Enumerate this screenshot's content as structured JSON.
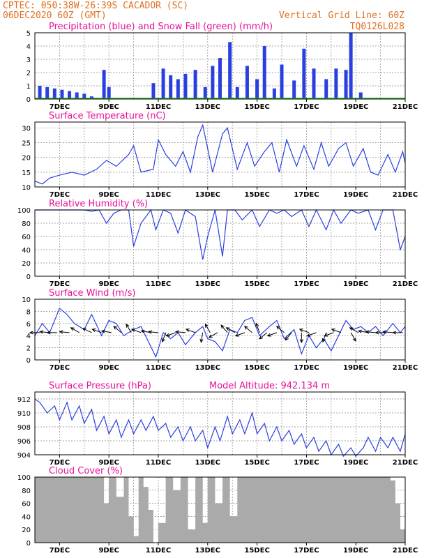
{
  "header": {
    "line1": "CPTEC:   050:38W-26:39S   CACADOR (SC)",
    "line2": "06DEC2020 60Z (GMT)",
    "grid_note": "Vertical Grid Line: 60Z",
    "code": "TQ0126L028"
  },
  "x_axis": {
    "tick_labels": [
      "7DEC",
      "9DEC",
      "11DEC",
      "13DEC",
      "15DEC",
      "17DEC",
      "19DEC",
      "21DEC"
    ],
    "start_day": 6.0,
    "end_day": 21.0
  },
  "chart_data": [
    {
      "id": "precip",
      "type": "bar",
      "title": "Precipitation (blue) and Snow Fall (green) (mm/h)",
      "ylim": [
        0,
        5
      ],
      "yticks": [
        0,
        1,
        2,
        3,
        4,
        5
      ],
      "series": [
        {
          "name": "Precipitation",
          "color": "#2a3fe0",
          "x": [
            6.2,
            6.5,
            6.8,
            7.1,
            7.4,
            7.7,
            8.0,
            8.3,
            8.8,
            9.0,
            10.8,
            11.2,
            11.5,
            11.8,
            12.1,
            12.5,
            12.9,
            13.2,
            13.5,
            13.9,
            14.2,
            14.6,
            15.0,
            15.3,
            15.7,
            16.0,
            16.5,
            16.9,
            17.3,
            17.8,
            18.2,
            18.6,
            18.8,
            19.2
          ],
          "values": [
            1.0,
            0.9,
            0.8,
            0.7,
            0.6,
            0.5,
            0.4,
            0.2,
            2.2,
            0.9,
            1.2,
            2.3,
            1.8,
            1.5,
            1.9,
            2.2,
            0.9,
            2.5,
            3.1,
            4.3,
            0.9,
            2.5,
            1.5,
            4.0,
            0.8,
            2.6,
            1.4,
            3.8,
            2.3,
            1.5,
            2.3,
            2.2,
            5.0,
            0.5
          ]
        },
        {
          "name": "Snow Fall",
          "color": "#20b020",
          "x": [],
          "values": []
        }
      ]
    },
    {
      "id": "temp",
      "type": "line",
      "title": "Surface Temperature (nC)",
      "ylim": [
        10,
        32
      ],
      "yticks": [
        10,
        15,
        20,
        25,
        30
      ],
      "x": [
        6.0,
        6.3,
        6.6,
        7.0,
        7.5,
        8.0,
        8.5,
        8.9,
        9.3,
        9.8,
        10.0,
        10.3,
        10.8,
        11.0,
        11.3,
        11.7,
        12.0,
        12.3,
        12.6,
        12.8,
        13.2,
        13.6,
        13.8,
        14.2,
        14.6,
        14.9,
        15.3,
        15.6,
        15.9,
        16.2,
        16.6,
        16.9,
        17.3,
        17.6,
        17.9,
        18.3,
        18.6,
        18.9,
        19.3,
        19.6,
        19.9,
        20.3,
        20.6,
        20.9,
        21.0
      ],
      "values": [
        12,
        11,
        13,
        14,
        15,
        14,
        16,
        19,
        17,
        21,
        24,
        15,
        16,
        26,
        21,
        17,
        22,
        15,
        27,
        31,
        15,
        28,
        30,
        16,
        25,
        17,
        22,
        25,
        15,
        26,
        17,
        24,
        16,
        25,
        17,
        23,
        25,
        17,
        23,
        15,
        14,
        21,
        15,
        22,
        18
      ]
    },
    {
      "id": "rh",
      "type": "line",
      "title": "Relative Humidity (%)",
      "ylim": [
        0,
        100
      ],
      "yticks": [
        0,
        20,
        40,
        60,
        80,
        100
      ],
      "x": [
        6.0,
        6.5,
        7.0,
        7.5,
        8.0,
        8.3,
        8.6,
        8.9,
        9.2,
        9.5,
        9.8,
        10.0,
        10.3,
        10.7,
        10.9,
        11.2,
        11.5,
        11.8,
        12.1,
        12.5,
        12.8,
        13.0,
        13.3,
        13.6,
        13.8,
        14.1,
        14.4,
        14.8,
        15.1,
        15.5,
        15.8,
        16.1,
        16.4,
        16.8,
        17.1,
        17.4,
        17.8,
        18.1,
        18.4,
        18.8,
        19.1,
        19.5,
        19.8,
        20.1,
        20.5,
        20.8,
        21.0
      ],
      "values": [
        100,
        100,
        100,
        100,
        100,
        98,
        100,
        80,
        95,
        100,
        100,
        45,
        80,
        100,
        70,
        100,
        95,
        65,
        100,
        90,
        25,
        60,
        100,
        30,
        100,
        100,
        85,
        100,
        75,
        100,
        95,
        100,
        90,
        100,
        75,
        100,
        70,
        100,
        80,
        100,
        95,
        100,
        70,
        100,
        100,
        40,
        60
      ]
    },
    {
      "id": "wind",
      "type": "line",
      "title": "Surface Wind (m/s)",
      "ylim": [
        0,
        10
      ],
      "yticks": [
        0,
        2,
        4,
        6,
        8,
        10
      ],
      "x": [
        6.0,
        6.3,
        6.6,
        7.0,
        7.3,
        7.6,
        8.0,
        8.3,
        8.7,
        9.0,
        9.3,
        9.6,
        10.0,
        10.3,
        10.6,
        10.9,
        11.2,
        11.5,
        11.8,
        12.1,
        12.5,
        12.8,
        13.0,
        13.3,
        13.6,
        13.9,
        14.2,
        14.5,
        14.8,
        15.1,
        15.5,
        15.8,
        16.1,
        16.5,
        16.8,
        17.1,
        17.4,
        17.7,
        18.0,
        18.3,
        18.6,
        18.9,
        19.2,
        19.5,
        19.8,
        20.1,
        20.5,
        20.8,
        21.0
      ],
      "values": [
        4,
        6,
        4.5,
        8.5,
        7.5,
        6,
        5,
        7.5,
        4,
        6.5,
        6,
        4,
        5,
        5.5,
        3,
        0.5,
        4.5,
        3.5,
        4.5,
        2.5,
        4.5,
        5.5,
        3.5,
        3,
        1.5,
        5,
        4.5,
        6.5,
        7,
        4,
        5.5,
        6.5,
        3.5,
        5,
        1,
        4,
        2,
        3.5,
        1.5,
        4,
        6.5,
        5,
        5.5,
        4.5,
        5.5,
        4,
        6,
        4.5,
        5.5
      ],
      "vectors": [
        {
          "x": 6.2,
          "dir": 180
        },
        {
          "x": 6.6,
          "dir": 175
        },
        {
          "x": 6.9,
          "dir": 180
        },
        {
          "x": 7.4,
          "dir": 175
        },
        {
          "x": 7.8,
          "dir": 150
        },
        {
          "x": 8.3,
          "dir": 155
        },
        {
          "x": 8.7,
          "dir": 160
        },
        {
          "x": 9.1,
          "dir": 170
        },
        {
          "x": 9.5,
          "dir": 140
        },
        {
          "x": 9.9,
          "dir": 120
        },
        {
          "x": 10.3,
          "dir": 160
        },
        {
          "x": 10.7,
          "dir": 170
        },
        {
          "x": 11.0,
          "dir": 175
        },
        {
          "x": 11.3,
          "dir": 250
        },
        {
          "x": 11.7,
          "dir": 200
        },
        {
          "x": 12.1,
          "dir": 175
        },
        {
          "x": 12.5,
          "dir": 160
        },
        {
          "x": 12.8,
          "dir": 260
        },
        {
          "x": 13.1,
          "dir": 120
        },
        {
          "x": 13.4,
          "dir": 210
        },
        {
          "x": 13.8,
          "dir": 130
        },
        {
          "x": 14.1,
          "dir": 150
        },
        {
          "x": 14.5,
          "dir": 200
        },
        {
          "x": 14.8,
          "dir": 140
        },
        {
          "x": 15.1,
          "dir": 110
        },
        {
          "x": 15.4,
          "dir": 220
        },
        {
          "x": 15.8,
          "dir": 200
        },
        {
          "x": 16.1,
          "dir": 140
        },
        {
          "x": 16.4,
          "dir": 230
        },
        {
          "x": 16.8,
          "dir": 270
        },
        {
          "x": 17.1,
          "dir": 160
        },
        {
          "x": 17.4,
          "dir": 200
        },
        {
          "x": 17.8,
          "dir": 250
        },
        {
          "x": 18.1,
          "dir": 200
        },
        {
          "x": 18.4,
          "dir": 160
        },
        {
          "x": 18.8,
          "dir": 300
        },
        {
          "x": 19.1,
          "dir": 150
        },
        {
          "x": 19.5,
          "dir": 170
        },
        {
          "x": 19.8,
          "dir": 175
        },
        {
          "x": 20.2,
          "dir": 180
        },
        {
          "x": 20.5,
          "dir": 175
        },
        {
          "x": 20.9,
          "dir": 180
        }
      ]
    },
    {
      "id": "pressure",
      "type": "line",
      "title": "Surface Pressure (hPa)",
      "subtitle": "Model Altitude: 942.134 m",
      "ylim": [
        904,
        913
      ],
      "yticks": [
        904,
        906,
        908,
        910,
        912
      ],
      "x": [
        6.0,
        6.2,
        6.5,
        6.8,
        7.0,
        7.3,
        7.5,
        7.8,
        8.0,
        8.3,
        8.5,
        8.8,
        9.0,
        9.3,
        9.5,
        9.8,
        10.0,
        10.3,
        10.5,
        10.8,
        11.0,
        11.3,
        11.5,
        11.8,
        12.0,
        12.3,
        12.5,
        12.8,
        13.0,
        13.3,
        13.5,
        13.8,
        14.0,
        14.3,
        14.5,
        14.8,
        15.0,
        15.3,
        15.5,
        15.8,
        16.0,
        16.3,
        16.5,
        16.8,
        17.0,
        17.3,
        17.5,
        17.8,
        18.0,
        18.3,
        18.5,
        18.8,
        19.0,
        19.3,
        19.5,
        19.8,
        20.0,
        20.3,
        20.5,
        20.8,
        21.0
      ],
      "values": [
        912,
        911.5,
        910,
        911,
        909,
        911.5,
        909,
        911,
        908.5,
        910.5,
        907.5,
        909.5,
        907,
        909,
        906.5,
        909,
        907,
        909,
        907.5,
        909.5,
        907.5,
        908.5,
        906.5,
        908,
        906,
        908,
        906,
        907.5,
        905,
        908,
        906,
        909.5,
        907,
        909,
        907,
        910,
        907,
        908.5,
        906,
        908,
        906,
        907.5,
        905.5,
        907,
        905,
        906.5,
        904.5,
        906,
        904,
        905.5,
        903.8,
        905,
        903.8,
        905,
        906.5,
        904.5,
        906.5,
        905,
        906.5,
        904.5,
        907
      ]
    },
    {
      "id": "cloud",
      "type": "bar",
      "title": "Cloud Cover (%)",
      "ylim": [
        0,
        100
      ],
      "yticks": [
        0,
        20,
        40,
        60,
        80,
        100
      ],
      "x": [
        6.0,
        6.5,
        7.0,
        7.5,
        8.0,
        8.5,
        8.8,
        9.0,
        9.3,
        9.6,
        9.8,
        10.0,
        10.2,
        10.4,
        10.6,
        10.8,
        11.0,
        11.3,
        11.6,
        11.9,
        12.2,
        12.5,
        12.8,
        13.0,
        13.3,
        13.6,
        13.9,
        14.2,
        14.5,
        15.0,
        15.5,
        16.0,
        16.5,
        17.0,
        17.5,
        18.0,
        18.5,
        19.0,
        19.5,
        20.0,
        20.4,
        20.6,
        20.8,
        21.0
      ],
      "values": [
        100,
        100,
        100,
        100,
        100,
        100,
        60,
        100,
        70,
        100,
        40,
        10,
        100,
        85,
        50,
        0,
        30,
        100,
        80,
        100,
        20,
        100,
        30,
        100,
        60,
        100,
        40,
        100,
        100,
        100,
        100,
        100,
        100,
        100,
        100,
        100,
        100,
        100,
        100,
        100,
        95,
        60,
        20,
        0
      ]
    }
  ]
}
